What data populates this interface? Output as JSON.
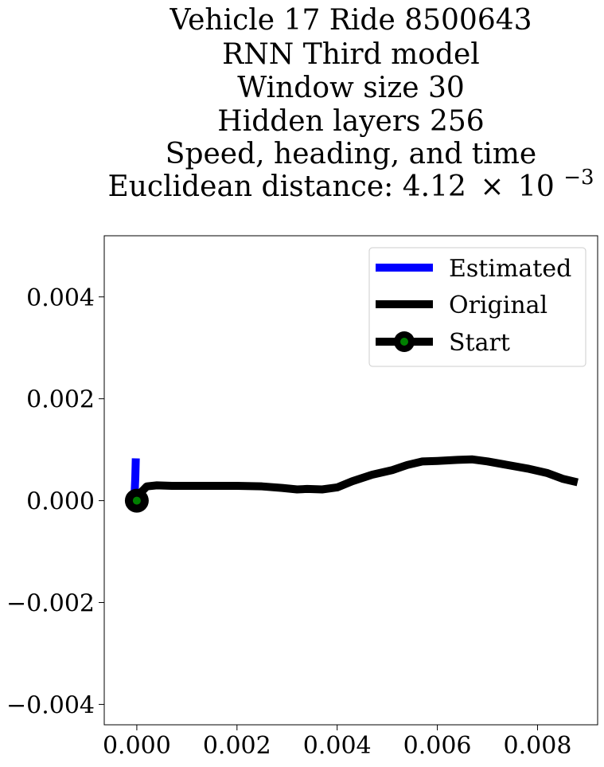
{
  "chart_data": {
    "type": "line",
    "title_lines": [
      "Vehicle 17 Ride 8500643",
      "RNN Third model",
      "Window size 30",
      "Hidden layers 256",
      "Speed, heading, and time"
    ],
    "title_last": {
      "prefix": "Euclidean distance: 4.12",
      "times": "×",
      "base": "10",
      "exponent": "−3"
    },
    "xlabel": "",
    "ylabel": "",
    "xlim": [
      -0.00065,
      0.0092
    ],
    "ylim": [
      -0.0044,
      0.0052
    ],
    "x_ticks": [
      0.0,
      0.002,
      0.004,
      0.006,
      0.008
    ],
    "x_tick_labels": [
      "0.000",
      "0.002",
      "0.004",
      "0.006",
      "0.008"
    ],
    "y_ticks": [
      0.004,
      0.002,
      0.0,
      -0.002,
      -0.004
    ],
    "y_tick_labels": [
      "0.004",
      "0.002",
      "0.000",
      "−0.002",
      "−0.004"
    ],
    "legend_position": "top-right",
    "series": [
      {
        "name": "Estimated",
        "color": "#0000ff",
        "x": [
          -5e-05,
          -3e-05,
          -2e-05
        ],
        "y": [
          0.0,
          0.00045,
          0.00083
        ]
      },
      {
        "name": "Original",
        "color": "#000000",
        "x": [
          0.0,
          0.0001,
          0.0002,
          0.0004,
          0.0007,
          0.001,
          0.0015,
          0.002,
          0.0025,
          0.0029,
          0.0032,
          0.0034,
          0.0037,
          0.004,
          0.0043,
          0.0047,
          0.0051,
          0.0054,
          0.0057,
          0.006,
          0.0064,
          0.0067,
          0.007,
          0.0074,
          0.0078,
          0.0082,
          0.0085,
          0.0088
        ],
        "y": [
          0.0,
          0.00018,
          0.00028,
          0.0003,
          0.00029,
          0.00029,
          0.00029,
          0.00029,
          0.00028,
          0.00025,
          0.00022,
          0.00023,
          0.00022,
          0.00026,
          0.00038,
          0.00051,
          0.0006,
          0.0007,
          0.00077,
          0.00078,
          0.0008,
          0.00081,
          0.00077,
          0.0007,
          0.00063,
          0.00054,
          0.00043,
          0.00036
        ]
      },
      {
        "name": "Start",
        "marker": "o",
        "marker_edge_color": "#000000",
        "marker_face_color": "#008000",
        "x": [
          0.0
        ],
        "y": [
          0.0
        ]
      }
    ]
  }
}
